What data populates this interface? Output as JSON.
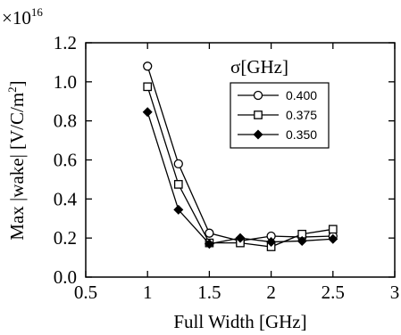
{
  "chart_data": {
    "type": "line",
    "multiplier": "×10",
    "multiplier_exponent": "16",
    "xlabel": "Full Width [GHz]",
    "ylabel_main": "Max |wake| [V/C/m",
    "ylabel_sup": "2",
    "ylabel_end": "]",
    "xlim": [
      0.5,
      3
    ],
    "ylim": [
      0.0,
      1.2
    ],
    "x_ticks": [
      0.5,
      1,
      1.5,
      2,
      2.5,
      3
    ],
    "x_tick_labels": [
      "0.5",
      "1",
      "1.5",
      "2",
      "2.5",
      "3"
    ],
    "y_ticks": [
      0.0,
      0.2,
      0.4,
      0.6,
      0.8,
      1.0,
      1.2
    ],
    "y_tick_labels": [
      "0.0",
      "0.2",
      "0.4",
      "0.6",
      "0.8",
      "1.0",
      "1.2"
    ],
    "legend_title_symbol": "σ",
    "legend_title_unit": "[GHz]",
    "legend_placement": "upper-right",
    "grid": false,
    "series": [
      {
        "name": "0.400",
        "marker": "circle",
        "x": [
          1.0,
          1.25,
          1.5,
          1.75,
          2.0,
          2.25,
          2.5
        ],
        "y": [
          1.08,
          0.58,
          0.225,
          0.185,
          0.21,
          0.205,
          0.21
        ]
      },
      {
        "name": "0.375",
        "marker": "square",
        "x": [
          1.0,
          1.25,
          1.5,
          1.75,
          2.0,
          2.25,
          2.5
        ],
        "y": [
          0.975,
          0.475,
          0.175,
          0.175,
          0.155,
          0.22,
          0.245
        ]
      },
      {
        "name": "0.350",
        "marker": "diamond",
        "x": [
          1.0,
          1.25,
          1.5,
          1.75,
          2.0,
          2.25,
          2.5
        ],
        "y": [
          0.845,
          0.345,
          0.17,
          0.2,
          0.18,
          0.185,
          0.195
        ]
      }
    ]
  }
}
